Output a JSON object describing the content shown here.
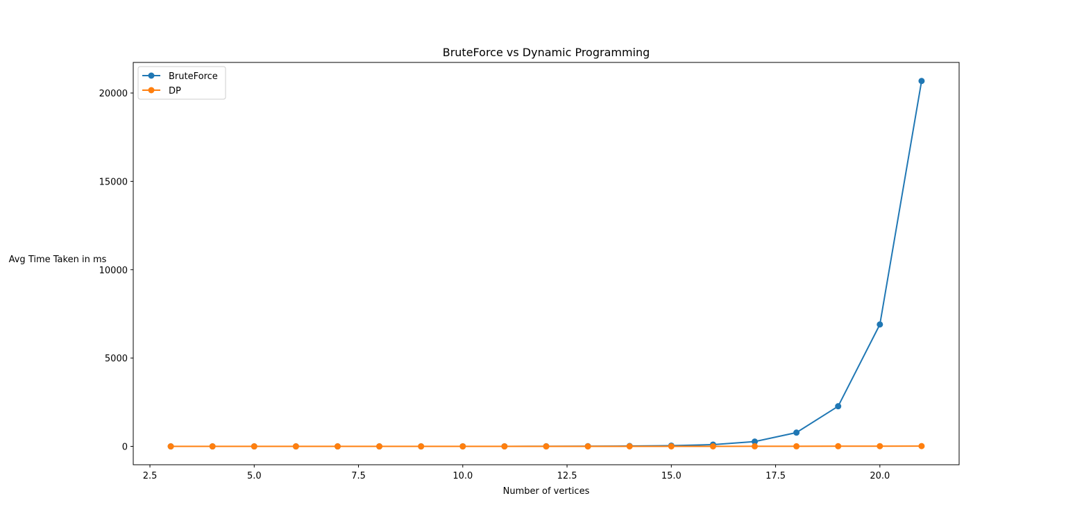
{
  "chart_data": {
    "type": "line",
    "title": "BruteForce vs Dynamic Programming",
    "xlabel": "Number of vertices",
    "ylabel": "Avg Time Taken in ms",
    "xlim": [
      2.1,
      21.9
    ],
    "ylim": [
      -1040,
      21730
    ],
    "xticks": [
      2.5,
      5.0,
      7.5,
      10.0,
      12.5,
      15.0,
      17.5,
      20.0
    ],
    "xtick_labels": [
      "2.5",
      "5.0",
      "7.5",
      "10.0",
      "12.5",
      "15.0",
      "17.5",
      "20.0"
    ],
    "yticks": [
      0,
      5000,
      10000,
      15000,
      20000
    ],
    "ytick_labels": [
      "0",
      "5000",
      "10000",
      "15000",
      "20000"
    ],
    "grid": false,
    "legend_position": "upper left",
    "x": [
      3,
      4,
      5,
      6,
      7,
      8,
      9,
      10,
      11,
      12,
      13,
      14,
      15,
      16,
      17,
      18,
      19,
      20,
      21
    ],
    "series": [
      {
        "name": "BruteForce",
        "color": "#1f77b4",
        "values": [
          0,
          0,
          0,
          0,
          0,
          0,
          0,
          1,
          2,
          4,
          8,
          20,
          40,
          100,
          270,
          780,
          2270,
          6900,
          20680
        ]
      },
      {
        "name": "DP",
        "color": "#ff7f0e",
        "values": [
          0,
          0,
          0,
          0,
          0,
          0,
          0,
          0,
          0,
          0,
          0,
          1,
          1,
          2,
          3,
          5,
          8,
          12,
          15
        ]
      }
    ]
  }
}
